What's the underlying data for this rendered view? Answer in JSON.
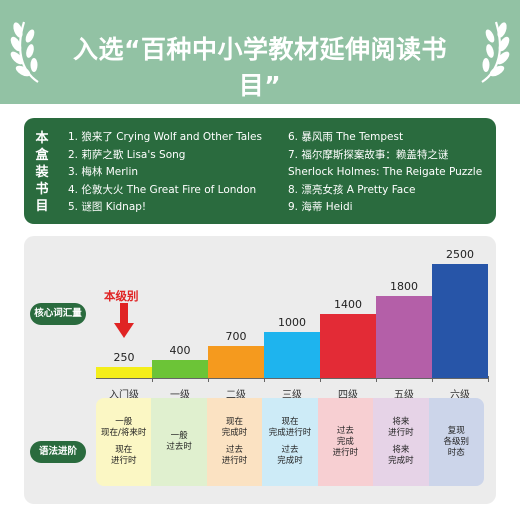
{
  "header": {
    "title": "入选“百种中小学教材延伸阅读书目”"
  },
  "box_contents": {
    "label": "本盒装书目",
    "books_left": [
      "1. 狼来了 Crying Wolf and Other Tales",
      "2. 莉萨之歌 Lisa's Song",
      "3. 梅林 Merlin",
      "4. 伦敦大火 The Great Fire of London",
      "5. 谜图 Kidnap!"
    ],
    "books_right": [
      "6. 暴风雨 The Tempest",
      "7. 福尔摩斯探案故事：赖盖特之谜",
      "Sherlock Holmes: The Reigate Puzzle",
      "8. 漂亮女孩 A Pretty Face",
      "9. 海蒂 Heidi"
    ]
  },
  "core_vocab_label": "核心词汇量",
  "grammar_label": "语法进阶",
  "level_note": "本级别",
  "colors": {
    "dark_green": "#2a6b3e",
    "header_green": "#92c2a4",
    "arrow_red": "#e02424"
  },
  "chart_data": {
    "type": "bar",
    "categories": [
      "入门级",
      "一级",
      "二级",
      "三级",
      "四级",
      "五级",
      "六级"
    ],
    "values": [
      250,
      400,
      700,
      1000,
      1400,
      1800,
      2500
    ],
    "bar_colors": [
      "#f4ee1a",
      "#6cc437",
      "#f59a1e",
      "#1eb4ee",
      "#e32b36",
      "#b45fa8",
      "#2755a8"
    ],
    "ylim": [
      0,
      2500
    ],
    "grid": false,
    "highlight_index": 0
  },
  "grammar": [
    {
      "parts": [
        "一般\n现在/将来时",
        "现在\n进行时"
      ],
      "bg": "#fbf7c4"
    },
    {
      "parts": [
        "一般\n过去时"
      ],
      "bg": "#e0f0cf"
    },
    {
      "parts": [
        "现在\n完成时",
        "过去\n进行时"
      ],
      "bg": "#fbe2c2"
    },
    {
      "parts": [
        "现在\n完成进行时",
        "过去\n完成时"
      ],
      "bg": "#cdebf7"
    },
    {
      "parts": [
        "过去\n完成\n进行时"
      ],
      "bg": "#f7cfd2"
    },
    {
      "parts": [
        "将来\n进行时",
        "将来\n完成时"
      ],
      "bg": "#e6d3e7"
    },
    {
      "parts": [
        "复现\n各级别\n时态"
      ],
      "bg": "#ccd5ea"
    }
  ]
}
